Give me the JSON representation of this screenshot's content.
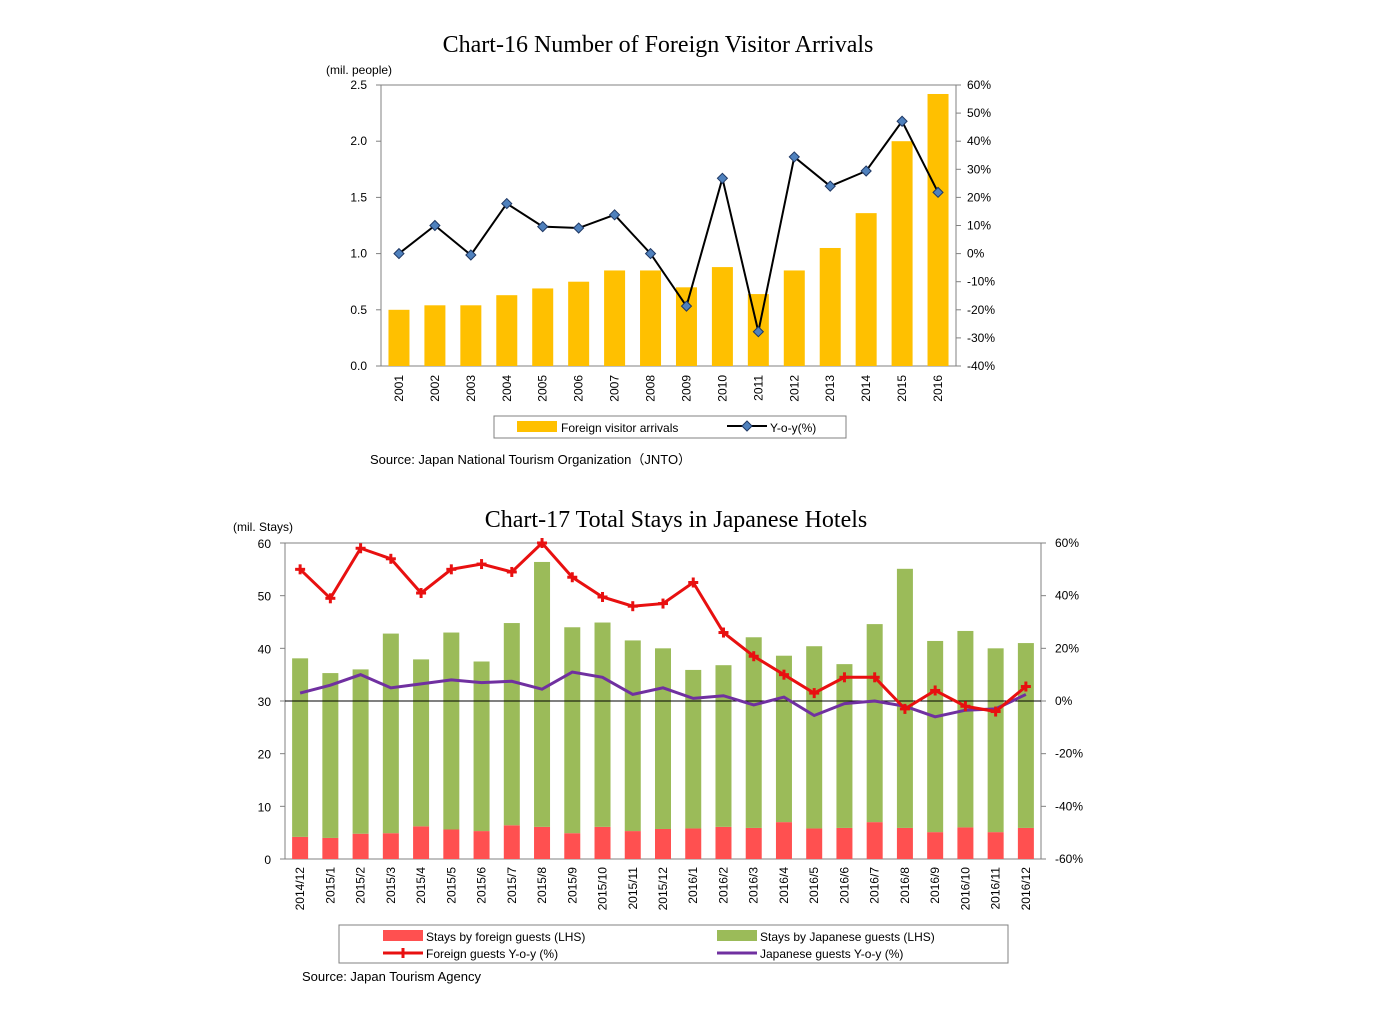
{
  "colors": {
    "visitor_bar": "#FFC000",
    "yoy_line": "#000000",
    "yoy_marker": "#4F81BD",
    "foreign_bar": "#FF5050",
    "japanese_bar": "#9BBB59",
    "foreign_yoy": "#E81010",
    "japanese_yoy": "#7030A0"
  },
  "source_16": "Source: Japan National Tourism Organization（JNTO）",
  "source_17": "Source: Japan Tourism Agency",
  "chart_data": [
    {
      "type": "bar",
      "title": "Chart-16 Number of Foreign Visitor Arrivals",
      "ylabel": "(mil. people)",
      "ylim": [
        0,
        2.5
      ],
      "y2lim": [
        -40,
        60
      ],
      "y_ticks": [
        "0.0",
        "0.5",
        "1.0",
        "1.5",
        "2.0",
        "2.5"
      ],
      "y2_ticks": [
        "-40%",
        "-30%",
        "-20%",
        "-10%",
        "0%",
        "10%",
        "20%",
        "30%",
        "40%",
        "50%",
        "60%"
      ],
      "categories": [
        "2001",
        "2002",
        "2003",
        "2004",
        "2005",
        "2006",
        "2007",
        "2008",
        "2009",
        "2010",
        "2011",
        "2012",
        "2013",
        "2014",
        "2015",
        "2016"
      ],
      "series": [
        {
          "name": "Foreign visitor arrivals",
          "type": "bar",
          "axis": "left",
          "values": [
            0.5,
            0.54,
            0.54,
            0.63,
            0.69,
            0.75,
            0.85,
            0.85,
            0.7,
            0.88,
            0.64,
            0.85,
            1.05,
            1.36,
            2.0,
            2.42
          ]
        },
        {
          "name": "Y-o-y(%)",
          "type": "line",
          "axis": "right",
          "values": [
            0,
            10,
            -0.5,
            17.8,
            9.6,
            9.1,
            13.8,
            0,
            -18.7,
            26.8,
            -27.8,
            34.4,
            24,
            29.4,
            47.1,
            21.8
          ]
        }
      ],
      "legend": "bottom"
    },
    {
      "type": "bar",
      "title": "Chart-17 Total Stays in Japanese Hotels",
      "ylabel": "(mil. Stays)",
      "ylim": [
        0,
        60
      ],
      "y2lim": [
        -60,
        60
      ],
      "y_ticks": [
        "0",
        "10",
        "20",
        "30",
        "40",
        "50",
        "60"
      ],
      "y2_ticks": [
        "-60%",
        "-40%",
        "-20%",
        "0%",
        "20%",
        "40%",
        "60%"
      ],
      "categories": [
        "2014/12",
        "2015/1",
        "2015/2",
        "2015/3",
        "2015/4",
        "2015/5",
        "2015/6",
        "2015/7",
        "2015/8",
        "2015/9",
        "2015/10",
        "2015/11",
        "2015/12",
        "2016/1",
        "2016/2",
        "2016/3",
        "2016/4",
        "2016/5",
        "2016/6",
        "2016/7",
        "2016/8",
        "2016/9",
        "2016/10",
        "2016/11",
        "2016/12"
      ],
      "series": [
        {
          "name": "Stays by foreign guests (LHS)",
          "type": "stacked-bar",
          "axis": "left",
          "values": [
            4.2,
            4.0,
            4.8,
            4.9,
            6.2,
            5.6,
            5.3,
            6.4,
            6.1,
            4.9,
            6.1,
            5.3,
            5.7,
            5.8,
            6.1,
            5.9,
            7.0,
            5.8,
            5.9,
            7.0,
            5.9,
            5.1,
            6.0,
            5.1,
            5.9
          ]
        },
        {
          "name": "Stays by Japanese guests (LHS)",
          "type": "stacked-bar",
          "axis": "left",
          "values": [
            33.9,
            31.3,
            31.2,
            37.9,
            31.7,
            37.4,
            32.2,
            38.4,
            50.3,
            39.1,
            38.8,
            36.2,
            34.3,
            30.1,
            30.7,
            36.2,
            31.6,
            34.6,
            31.1,
            37.6,
            49.2,
            36.3,
            37.3,
            34.9,
            35.1
          ]
        },
        {
          "name": "Foreign guests Y-o-y (%)",
          "type": "line",
          "axis": "right",
          "values": [
            50,
            39,
            58,
            54,
            41,
            50,
            52,
            49,
            60,
            47,
            39.5,
            36,
            37,
            45,
            26,
            17,
            10,
            3,
            9,
            9,
            -3,
            4,
            -2,
            -4,
            5.5
          ]
        },
        {
          "name": "Japanese guests Y-o-y (%)",
          "type": "line",
          "axis": "right",
          "values": [
            3,
            6,
            10,
            5,
            6.5,
            8,
            7,
            7.5,
            4.5,
            11,
            9,
            2.5,
            5,
            1,
            2,
            -1.5,
            1.5,
            -5.5,
            -1,
            0,
            -2,
            -6,
            -3.5,
            -3,
            2.5
          ]
        }
      ],
      "legend": "bottom"
    }
  ]
}
